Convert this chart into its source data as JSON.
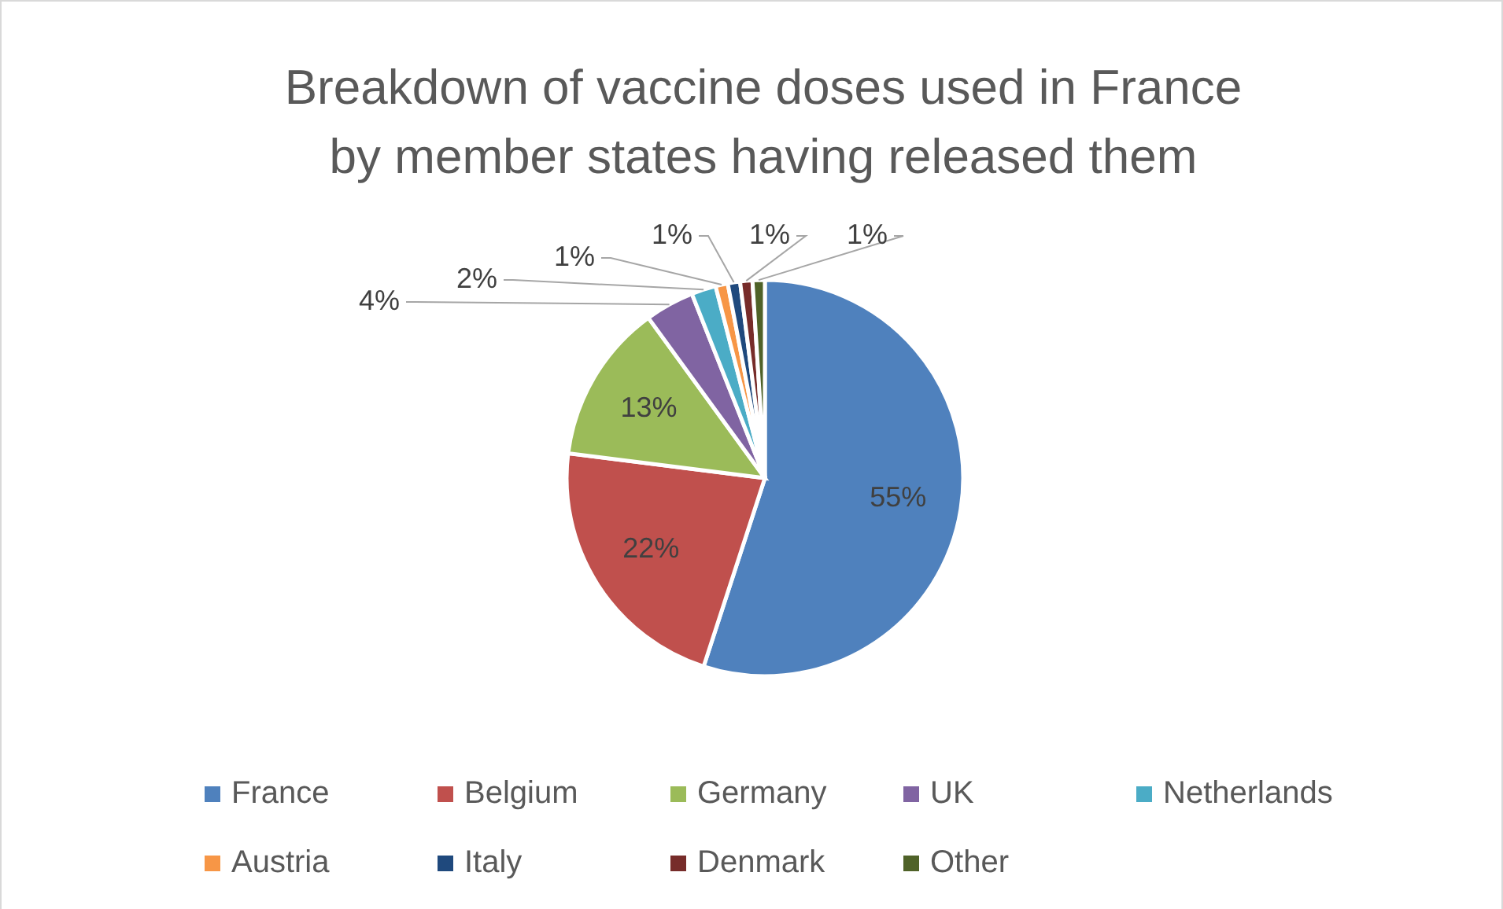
{
  "chart_data": {
    "type": "pie",
    "title": "Breakdown of vaccine doses used in France by member states having released them",
    "categories": [
      "France",
      "Belgium",
      "Germany",
      "UK",
      "Netherlands",
      "Austria",
      "Italy",
      "Denmark",
      "Other"
    ],
    "values": [
      55,
      22,
      13,
      4,
      2,
      1,
      1,
      1,
      1
    ],
    "value_labels": [
      "55%",
      "22%",
      "13%",
      "4%",
      "2%",
      "1%",
      "1%",
      "1%",
      "1%"
    ],
    "colors": [
      "#4f81bd",
      "#c0504d",
      "#9bbb59",
      "#8064a2",
      "#4bacc6",
      "#f79646",
      "#1f497d",
      "#772c2a",
      "#4f6228"
    ],
    "legend": "bottom"
  }
}
